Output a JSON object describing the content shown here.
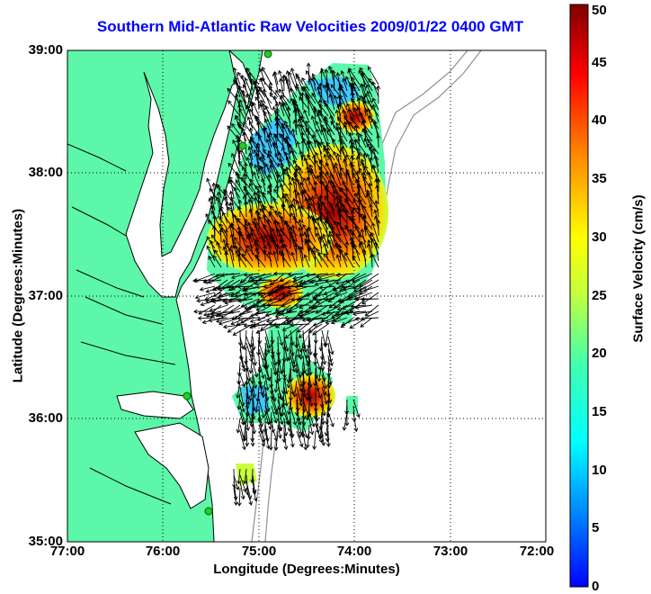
{
  "title": "Southern Mid-Atlantic Raw Velocities 2009/01/22 0400 GMT",
  "xlabel": "Longitude (Degrees:Minutes)",
  "ylabel": "Latitude (Degrees:Minutes)",
  "colorbar": {
    "label": "Surface Velocity (cm/s)",
    "ticks": [
      "0",
      "5",
      "10",
      "15",
      "20",
      "25",
      "30",
      "35",
      "40",
      "45",
      "50"
    ],
    "min": 0,
    "max": 50
  },
  "x_ticks": [
    "77:00",
    "76:00",
    "75:00",
    "74:00",
    "73:00",
    "72:00"
  ],
  "y_ticks": [
    "39:00",
    "38:00",
    "37:00",
    "36:00",
    "35:00"
  ],
  "colors": {
    "land": "#5cf7a8",
    "title": "#0000ff",
    "coast": "#000000",
    "bathymetry": "#909090",
    "station": "#22cc22"
  },
  "chart_data": {
    "type": "heatmap",
    "x_range": [
      -77,
      -72
    ],
    "y_range": [
      35,
      39
    ],
    "grid": true,
    "legend_placement": "right colorbar",
    "series": [
      {
        "name": "",
        "regions": [
          {
            "lon": -74.4,
            "lat": 37.7,
            "speed": 45
          },
          {
            "lon": -74.0,
            "lat": 38.5,
            "speed": 42
          },
          {
            "lon": -74.8,
            "lat": 37.0,
            "speed": 44
          },
          {
            "lon": -74.3,
            "lat": 36.3,
            "speed": 40
          },
          {
            "lon": -74.8,
            "lat": 38.2,
            "speed": 12
          },
          {
            "lon": -74.2,
            "lat": 38.8,
            "speed": 8
          },
          {
            "lon": -75.0,
            "lat": 36.3,
            "speed": 12
          }
        ]
      }
    ]
  }
}
